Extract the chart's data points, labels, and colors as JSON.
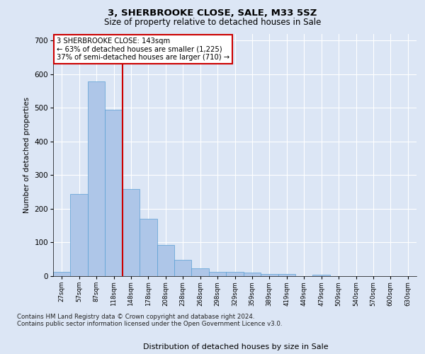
{
  "title": "3, SHERBROOKE CLOSE, SALE, M33 5SZ",
  "subtitle": "Size of property relative to detached houses in Sale",
  "xlabel": "Distribution of detached houses by size in Sale",
  "ylabel": "Number of detached properties",
  "bar_color": "#aec6e8",
  "bar_edge_color": "#5a9fd4",
  "bin_labels": [
    "27sqm",
    "57sqm",
    "87sqm",
    "118sqm",
    "148sqm",
    "178sqm",
    "208sqm",
    "238sqm",
    "268sqm",
    "298sqm",
    "329sqm",
    "359sqm",
    "389sqm",
    "419sqm",
    "449sqm",
    "479sqm",
    "509sqm",
    "540sqm",
    "570sqm",
    "600sqm",
    "630sqm"
  ],
  "bar_heights": [
    13,
    243,
    578,
    495,
    258,
    170,
    92,
    48,
    24,
    13,
    13,
    10,
    6,
    7,
    0,
    5,
    0,
    0,
    0,
    0,
    0
  ],
  "vline_x": 3.5,
  "vline_color": "#cc0000",
  "annotation_text": "3 SHERBROOKE CLOSE: 143sqm\n← 63% of detached houses are smaller (1,225)\n37% of semi-detached houses are larger (710) →",
  "annotation_box_color": "#ffffff",
  "annotation_box_edge": "#cc0000",
  "ylim": [
    0,
    720
  ],
  "yticks": [
    0,
    100,
    200,
    300,
    400,
    500,
    600,
    700
  ],
  "footer": "Contains HM Land Registry data © Crown copyright and database right 2024.\nContains public sector information licensed under the Open Government Licence v3.0.",
  "bg_color": "#dce6f5",
  "plot_bg_color": "#dce6f5",
  "grid_color": "#ffffff"
}
